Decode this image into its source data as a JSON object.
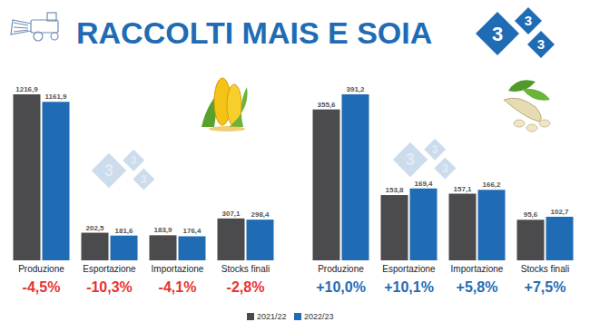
{
  "title": "RACCOLTI MAIS E SOIA",
  "logo": "333",
  "chart_data": [
    {
      "type": "bar",
      "categories": [
        "Produzione",
        "Esportazione",
        "Importazione",
        "Stocks finali"
      ],
      "series": [
        {
          "name": "2021/22",
          "color": "#4b4b4d",
          "values": [
            1216.9,
            202.5,
            183.9,
            307.1
          ],
          "value_labels": [
            "1216,9",
            "202,5",
            "183,9",
            "307,1"
          ]
        },
        {
          "name": "2022/23",
          "color": "#1f6cb5",
          "values": [
            1161.9,
            181.6,
            176.4,
            298.4
          ],
          "value_labels": [
            "1161,9",
            "181,6",
            "176,4",
            "298,4"
          ]
        }
      ],
      "ylim": [
        0,
        1216.9
      ],
      "data_labels": true,
      "tick_labels": "x",
      "legend": "bottom",
      "changes": [
        -4.5,
        -10.3,
        -4.1,
        -2.8
      ],
      "changes_labels": [
        "-4,5%",
        "-10,3%",
        "-4,1%",
        "-2,8%"
      ]
    },
    {
      "type": "bar",
      "categories": [
        "Produzione",
        "Esportazione",
        "Importazione",
        "Stocks finali"
      ],
      "series": [
        {
          "color": "#4b4b4d",
          "values": [
            355.6,
            153.8,
            157.1,
            95.6
          ],
          "value_labels": [
            "355,6",
            "153,8",
            "157,1",
            "95,6"
          ]
        },
        {
          "color": "#1f6cb5",
          "values": [
            391.2,
            169.4,
            166.2,
            102.7
          ],
          "value_labels": [
            "391,2",
            "169,4",
            "166,2",
            "102,7"
          ]
        }
      ],
      "ylim": [
        0,
        391.2
      ],
      "data_labels": true,
      "tick_labels": "x",
      "changes": [
        10.0,
        10.1,
        5.8,
        7.5
      ],
      "changes_labels": [
        "+10,0%",
        "+10,1%",
        "+5,8%",
        "+7,5%"
      ]
    }
  ]
}
